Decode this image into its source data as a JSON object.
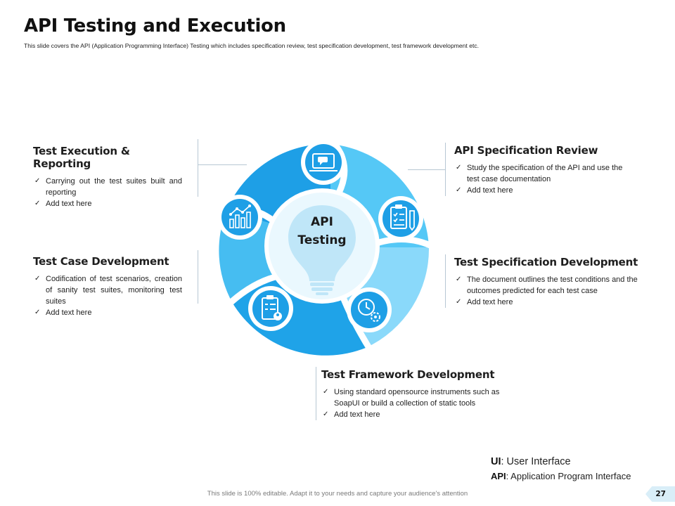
{
  "header": {
    "title": "API Testing and Execution",
    "subtitle": "This slide covers the API (Application Programming Interface) Testing which includes specification review, test specification development, test framework development etc."
  },
  "center": {
    "line1": "API",
    "line2": "Testing"
  },
  "blocks": {
    "execution": {
      "heading": "Test Execution & Reporting",
      "items": [
        "Carrying out the test suites built and reporting",
        "Add text here"
      ]
    },
    "case_dev": {
      "heading": "Test Case Development",
      "items": [
        "Codification of test scenarios, creation of sanity test suites, monitoring test suites",
        "Add text here"
      ]
    },
    "spec_review": {
      "heading": "API Specification Review",
      "items": [
        "Study the specification of the API and use the test case documentation",
        "Add text here"
      ]
    },
    "spec_dev": {
      "heading": "Test Specification Development",
      "items": [
        "The document outlines the test conditions and the outcomes predicted for each test case",
        "Add text here"
      ]
    },
    "framework": {
      "heading": "Test Framework Development",
      "items": [
        "Using standard opensource instruments such as SoapUI or build a collection of static tools",
        "Add text here"
      ]
    }
  },
  "abbreviations": [
    {
      "abbr": "UI",
      "definition": ": User Interface"
    },
    {
      "abbr": "API",
      "definition": ": Application Program Interface"
    }
  ],
  "footer": {
    "note": "This slide is 100% editable. Adapt it to your needs and capture your audience's attention",
    "page_number": "27"
  },
  "icons": [
    "monitor-chat-icon",
    "checklist-clipboard-icon",
    "clock-gear-icon",
    "clipboard-user-icon",
    "bar-chart-icon",
    "lightbulb-icon"
  ],
  "colors": {
    "dark_blue": "#1aa2e6",
    "mid_blue": "#3fc0f2",
    "light_blue": "#7dd3f7",
    "pale_blue": "#cbedfc"
  }
}
